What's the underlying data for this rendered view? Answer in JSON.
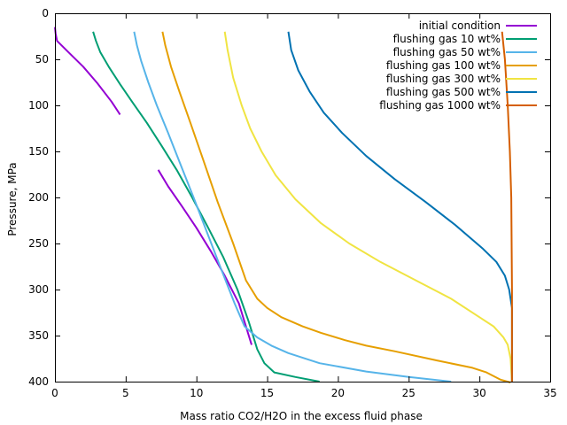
{
  "chart_data": {
    "type": "line",
    "title": "",
    "xlabel": "Mass ratio CO2/H2O in the excess fluid phase",
    "ylabel": "Pressure, MPa",
    "xlim": [
      0,
      35
    ],
    "ylim": [
      400,
      0
    ],
    "y_inverted": true,
    "xticks": [
      0,
      5,
      10,
      15,
      20,
      25,
      30,
      35
    ],
    "yticks": [
      0,
      50,
      100,
      150,
      200,
      250,
      300,
      350,
      400
    ],
    "grid": false,
    "legend_position": "top-right",
    "series": [
      {
        "name": "initial condition",
        "color": "#9400d3",
        "segments": [
          [
            [
              0.0,
              15
            ],
            [
              0.05,
              22
            ],
            [
              0.15,
              30
            ],
            [
              1.0,
              43
            ],
            [
              2.0,
              58
            ],
            [
              3.0,
              76
            ],
            [
              4.0,
              96
            ],
            [
              4.6,
              110
            ]
          ],
          [
            [
              7.3,
              170
            ],
            [
              8.0,
              188
            ],
            [
              9.0,
              210
            ],
            [
              10.0,
              233
            ],
            [
              11.0,
              258
            ],
            [
              12.0,
              285
            ],
            [
              13.0,
              315
            ],
            [
              13.9,
              360
            ]
          ]
        ]
      },
      {
        "name": "flushing gas 10 wt%",
        "color": "#009e73",
        "points": [
          [
            2.7,
            20
          ],
          [
            2.9,
            30
          ],
          [
            3.2,
            42
          ],
          [
            3.8,
            58
          ],
          [
            4.6,
            77
          ],
          [
            5.5,
            97
          ],
          [
            6.5,
            119
          ],
          [
            7.5,
            143
          ],
          [
            8.6,
            170
          ],
          [
            9.7,
            200
          ],
          [
            10.8,
            232
          ],
          [
            11.9,
            265
          ],
          [
            12.9,
            300
          ],
          [
            13.7,
            335
          ],
          [
            14.3,
            365
          ],
          [
            14.8,
            380
          ],
          [
            15.5,
            390
          ],
          [
            17.0,
            395
          ],
          [
            18.7,
            400
          ]
        ]
      },
      {
        "name": "flushing gas 50 wt%",
        "color": "#56b4e9",
        "points": [
          [
            5.6,
            20
          ],
          [
            5.8,
            35
          ],
          [
            6.1,
            52
          ],
          [
            6.6,
            75
          ],
          [
            7.2,
            100
          ],
          [
            8.0,
            130
          ],
          [
            8.9,
            165
          ],
          [
            9.8,
            200
          ],
          [
            10.8,
            240
          ],
          [
            11.8,
            280
          ],
          [
            12.7,
            315
          ],
          [
            13.4,
            340
          ],
          [
            14.3,
            352
          ],
          [
            15.3,
            361
          ],
          [
            16.5,
            369
          ],
          [
            18.7,
            380
          ],
          [
            22.0,
            389
          ],
          [
            25.0,
            395
          ],
          [
            28.0,
            400
          ]
        ]
      },
      {
        "name": "flushing gas 100 wt%",
        "color": "#e69f00",
        "points": [
          [
            7.6,
            20
          ],
          [
            7.8,
            35
          ],
          [
            8.2,
            58
          ],
          [
            8.8,
            85
          ],
          [
            9.6,
            120
          ],
          [
            10.5,
            160
          ],
          [
            11.5,
            205
          ],
          [
            12.6,
            250
          ],
          [
            13.5,
            290
          ],
          [
            14.3,
            310
          ],
          [
            15.0,
            320
          ],
          [
            16.0,
            330
          ],
          [
            17.5,
            340
          ],
          [
            18.8,
            347
          ],
          [
            20.5,
            355
          ],
          [
            22.0,
            361
          ],
          [
            24.0,
            367
          ],
          [
            27.0,
            377
          ],
          [
            29.5,
            385
          ],
          [
            30.5,
            390
          ],
          [
            31.5,
            398
          ],
          [
            32.2,
            401
          ]
        ]
      },
      {
        "name": "flushing gas 300 wt%",
        "color": "#f0e442",
        "points": [
          [
            12.0,
            20
          ],
          [
            12.2,
            40
          ],
          [
            12.6,
            70
          ],
          [
            13.2,
            100
          ],
          [
            13.8,
            125
          ],
          [
            14.6,
            150
          ],
          [
            15.6,
            176
          ],
          [
            17.0,
            202
          ],
          [
            18.8,
            228
          ],
          [
            20.8,
            250
          ],
          [
            23.0,
            270
          ],
          [
            25.5,
            290
          ],
          [
            28.0,
            310
          ],
          [
            30.0,
            330
          ],
          [
            31.0,
            340
          ],
          [
            31.7,
            352
          ],
          [
            32.0,
            360
          ],
          [
            32.2,
            375
          ],
          [
            32.3,
            400
          ]
        ]
      },
      {
        "name": "flushing gas 500 wt%",
        "color": "#0072b2",
        "points": [
          [
            16.5,
            20
          ],
          [
            16.7,
            40
          ],
          [
            17.2,
            62
          ],
          [
            18.0,
            85
          ],
          [
            19.0,
            108
          ],
          [
            20.3,
            130
          ],
          [
            22.0,
            155
          ],
          [
            24.0,
            180
          ],
          [
            26.2,
            205
          ],
          [
            28.3,
            230
          ],
          [
            30.2,
            255
          ],
          [
            31.2,
            270
          ],
          [
            31.8,
            285
          ],
          [
            32.1,
            300
          ],
          [
            32.3,
            320
          ],
          [
            32.3,
            350
          ],
          [
            32.3,
            400
          ]
        ]
      },
      {
        "name": "flushing gas 1000 wt%",
        "color": "#d55e00",
        "points": [
          [
            31.6,
            20
          ],
          [
            31.8,
            50
          ],
          [
            32.0,
            100
          ],
          [
            32.15,
            150
          ],
          [
            32.25,
            200
          ],
          [
            32.3,
            300
          ],
          [
            32.3,
            400
          ]
        ]
      }
    ]
  }
}
